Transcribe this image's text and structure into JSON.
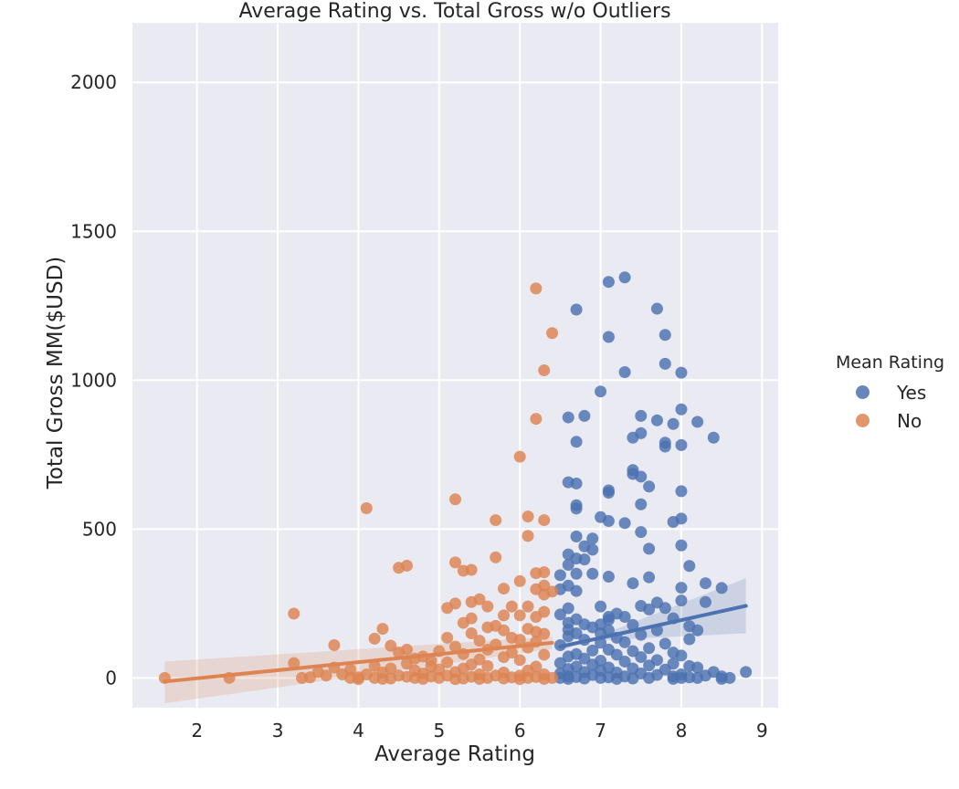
{
  "chart_data": {
    "type": "scatter",
    "title": "Average Rating vs. Total Gross w/o Outliers",
    "xlabel": "Average Rating",
    "ylabel": "Total Gross MM($USD)",
    "xlim": [
      1.2,
      9.2
    ],
    "ylim": [
      -100,
      2200
    ],
    "xticks": [
      2,
      3,
      4,
      5,
      6,
      7,
      8,
      9
    ],
    "yticks": [
      0,
      500,
      1000,
      1500,
      2000
    ],
    "grid": true,
    "background_color": "#eaeaf2",
    "legend": {
      "title": "Mean Rating",
      "placement": "right",
      "entries": [
        {
          "label": "Yes",
          "color": "#4c72b0"
        },
        {
          "label": "No",
          "color": "#dd8452"
        }
      ]
    },
    "series": [
      {
        "name": "Yes",
        "color": "#4c72b0",
        "regression": {
          "x": [
            6.5,
            8.8
          ],
          "y": [
            105,
            242
          ],
          "ci_upper_end": 335,
          "ci_lower_end": 150
        },
        "points": [
          [
            7.3,
            1345
          ],
          [
            7.1,
            1330
          ],
          [
            7.7,
            1240
          ],
          [
            6.7,
            1237
          ],
          [
            7.8,
            1152
          ],
          [
            7.1,
            1145
          ],
          [
            7.8,
            1055
          ],
          [
            7.3,
            1027
          ],
          [
            8.0,
            1025
          ],
          [
            7.0,
            962
          ],
          [
            8.0,
            902
          ],
          [
            7.5,
            880
          ],
          [
            6.6,
            875
          ],
          [
            6.8,
            880
          ],
          [
            8.2,
            860
          ],
          [
            7.7,
            865
          ],
          [
            7.9,
            853
          ],
          [
            7.5,
            822
          ],
          [
            7.4,
            807
          ],
          [
            8.4,
            807
          ],
          [
            6.7,
            793
          ],
          [
            7.8,
            790
          ],
          [
            7.8,
            777
          ],
          [
            8.0,
            782
          ],
          [
            7.4,
            698
          ],
          [
            7.4,
            685
          ],
          [
            7.5,
            676
          ],
          [
            6.6,
            657
          ],
          [
            6.7,
            653
          ],
          [
            7.6,
            643
          ],
          [
            7.1,
            630
          ],
          [
            7.1,
            622
          ],
          [
            8.0,
            627
          ],
          [
            7.5,
            583
          ],
          [
            6.7,
            580
          ],
          [
            6.7,
            569
          ],
          [
            7.0,
            540
          ],
          [
            8.0,
            535
          ],
          [
            7.1,
            527
          ],
          [
            7.9,
            524
          ],
          [
            7.3,
            520
          ],
          [
            7.5,
            490
          ],
          [
            6.7,
            475
          ],
          [
            6.9,
            468
          ],
          [
            6.8,
            442
          ],
          [
            8.0,
            445
          ],
          [
            7.6,
            434
          ],
          [
            6.9,
            431
          ],
          [
            6.6,
            415
          ],
          [
            6.7,
            401
          ],
          [
            6.8,
            398
          ],
          [
            6.6,
            380
          ],
          [
            8.1,
            376
          ],
          [
            6.7,
            350
          ],
          [
            6.9,
            350
          ],
          [
            6.5,
            345
          ],
          [
            7.1,
            340
          ],
          [
            7.6,
            338
          ],
          [
            8.3,
            318
          ],
          [
            7.4,
            318
          ],
          [
            6.6,
            310
          ],
          [
            8.0,
            303
          ],
          [
            8.5,
            302
          ],
          [
            6.5,
            298
          ],
          [
            6.7,
            292
          ],
          [
            8.0,
            260
          ],
          [
            8.3,
            255
          ],
          [
            7.7,
            253
          ],
          [
            7.0,
            240
          ],
          [
            6.6,
            234
          ],
          [
            7.5,
            242
          ],
          [
            7.8,
            235
          ],
          [
            7.6,
            230
          ],
          [
            7.2,
            216
          ],
          [
            6.5,
            213
          ],
          [
            7.1,
            205
          ],
          [
            7.3,
            205
          ],
          [
            6.7,
            197
          ],
          [
            7.9,
            200
          ],
          [
            7.1,
            195
          ],
          [
            6.6,
            185
          ],
          [
            7.0,
            180
          ],
          [
            6.8,
            180
          ],
          [
            7.4,
            178
          ],
          [
            6.9,
            170
          ],
          [
            8.1,
            174
          ],
          [
            8.2,
            160
          ],
          [
            7.1,
            160
          ],
          [
            6.6,
            162
          ],
          [
            7.7,
            160
          ],
          [
            6.7,
            150
          ],
          [
            7.0,
            150
          ],
          [
            7.5,
            145
          ],
          [
            6.6,
            140
          ],
          [
            7.2,
            135
          ],
          [
            8.1,
            130
          ],
          [
            6.8,
            128
          ],
          [
            7.3,
            120
          ],
          [
            7.0,
            118
          ],
          [
            7.8,
            115
          ],
          [
            6.5,
            110
          ],
          [
            7.6,
            100
          ],
          [
            7.1,
            95
          ],
          [
            6.9,
            92
          ],
          [
            7.4,
            90
          ],
          [
            7.9,
            85
          ],
          [
            6.7,
            80
          ],
          [
            7.2,
            78
          ],
          [
            8.0,
            75
          ],
          [
            6.6,
            72
          ],
          [
            7.5,
            70
          ],
          [
            6.8,
            65
          ],
          [
            7.7,
            60
          ],
          [
            7.0,
            58
          ],
          [
            7.3,
            55
          ],
          [
            6.5,
            50
          ],
          [
            7.9,
            48
          ],
          [
            6.9,
            45
          ],
          [
            7.6,
            42
          ],
          [
            8.1,
            40
          ],
          [
            6.7,
            38
          ],
          [
            7.1,
            35
          ],
          [
            8.2,
            35
          ],
          [
            7.4,
            32
          ],
          [
            6.6,
            30
          ],
          [
            7.8,
            28
          ],
          [
            7.0,
            25
          ],
          [
            8.4,
            20
          ],
          [
            6.8,
            20
          ],
          [
            7.2,
            18
          ],
          [
            8.8,
            20
          ],
          [
            6.5,
            15
          ],
          [
            7.5,
            15
          ],
          [
            8.0,
            12
          ],
          [
            6.9,
            10
          ],
          [
            7.7,
            10
          ],
          [
            8.3,
            8
          ],
          [
            6.6,
            5
          ],
          [
            7.3,
            5
          ],
          [
            7.9,
            5
          ],
          [
            8.5,
            5
          ],
          [
            6.7,
            3
          ],
          [
            7.1,
            2
          ],
          [
            8.1,
            2
          ],
          [
            6.5,
            0
          ],
          [
            7.0,
            0
          ],
          [
            7.6,
            0
          ],
          [
            8.2,
            0
          ],
          [
            8.6,
            0
          ],
          [
            8.5,
            -3
          ],
          [
            6.8,
            -2
          ],
          [
            7.4,
            -2
          ],
          [
            6.6,
            -3
          ],
          [
            7.2,
            -3
          ],
          [
            7.9,
            -3
          ],
          [
            8.0,
            0
          ]
        ]
      },
      {
        "name": "No",
        "color": "#dd8452",
        "regression": {
          "x": [
            1.6,
            6.4
          ],
          "y": [
            -12,
            118
          ],
          "ci_upper_start": 55,
          "ci_lower_start": -85
        },
        "points": [
          [
            6.2,
            1308
          ],
          [
            6.4,
            1158
          ],
          [
            6.3,
            1033
          ],
          [
            6.2,
            870
          ],
          [
            6.0,
            743
          ],
          [
            5.2,
            600
          ],
          [
            4.1,
            570
          ],
          [
            6.1,
            542
          ],
          [
            5.7,
            530
          ],
          [
            6.3,
            530
          ],
          [
            6.1,
            477
          ],
          [
            5.7,
            405
          ],
          [
            5.2,
            388
          ],
          [
            4.6,
            377
          ],
          [
            4.5,
            370
          ],
          [
            5.4,
            363
          ],
          [
            5.3,
            360
          ],
          [
            6.3,
            355
          ],
          [
            6.2,
            352
          ],
          [
            6.0,
            325
          ],
          [
            6.3,
            310
          ],
          [
            5.8,
            300
          ],
          [
            6.2,
            298
          ],
          [
            6.4,
            290
          ],
          [
            6.3,
            280
          ],
          [
            5.5,
            264
          ],
          [
            5.4,
            255
          ],
          [
            5.2,
            250
          ],
          [
            5.1,
            235
          ],
          [
            5.9,
            240
          ],
          [
            6.1,
            240
          ],
          [
            5.6,
            240
          ],
          [
            6.3,
            222
          ],
          [
            3.2,
            216
          ],
          [
            5.8,
            210
          ],
          [
            6.0,
            210
          ],
          [
            6.2,
            205
          ],
          [
            5.4,
            200
          ],
          [
            5.3,
            185
          ],
          [
            5.7,
            175
          ],
          [
            5.6,
            170
          ],
          [
            6.1,
            165
          ],
          [
            4.3,
            165
          ],
          [
            5.8,
            160
          ],
          [
            6.2,
            155
          ],
          [
            5.4,
            150
          ],
          [
            6.3,
            148
          ],
          [
            4.2,
            132
          ],
          [
            5.1,
            135
          ],
          [
            5.9,
            135
          ],
          [
            6.0,
            128
          ],
          [
            5.5,
            125
          ],
          [
            6.2,
            122
          ],
          [
            3.7,
            110
          ],
          [
            4.4,
            108
          ],
          [
            5.7,
            112
          ],
          [
            5.2,
            105
          ],
          [
            6.1,
            102
          ],
          [
            4.6,
            95
          ],
          [
            5.6,
            95
          ],
          [
            5.0,
            90
          ],
          [
            4.5,
            85
          ],
          [
            5.9,
            85
          ],
          [
            5.3,
            80
          ],
          [
            6.3,
            78
          ],
          [
            4.8,
            72
          ],
          [
            5.8,
            70
          ],
          [
            4.7,
            65
          ],
          [
            5.5,
            62
          ],
          [
            4.9,
            58
          ],
          [
            6.0,
            60
          ],
          [
            3.2,
            50
          ],
          [
            5.1,
            52
          ],
          [
            4.6,
            48
          ],
          [
            5.4,
            45
          ],
          [
            4.2,
            40
          ],
          [
            3.7,
            35
          ],
          [
            5.6,
            40
          ],
          [
            4.9,
            38
          ],
          [
            6.2,
            38
          ],
          [
            4.4,
            32
          ],
          [
            5.3,
            32
          ],
          [
            3.9,
            28
          ],
          [
            5.0,
            28
          ],
          [
            4.7,
            25
          ],
          [
            6.1,
            25
          ],
          [
            3.5,
            20
          ],
          [
            4.3,
            18
          ],
          [
            5.2,
            20
          ],
          [
            5.8,
            18
          ],
          [
            3.8,
            12
          ],
          [
            4.1,
            12
          ],
          [
            4.8,
            15
          ],
          [
            5.5,
            12
          ],
          [
            6.3,
            12
          ],
          [
            3.6,
            8
          ],
          [
            4.5,
            8
          ],
          [
            5.1,
            8
          ],
          [
            5.7,
            8
          ],
          [
            6.0,
            8
          ],
          [
            3.4,
            2
          ],
          [
            4.0,
            2
          ],
          [
            4.6,
            4
          ],
          [
            4.9,
            5
          ],
          [
            5.4,
            4
          ],
          [
            5.9,
            2
          ],
          [
            6.2,
            3
          ],
          [
            1.6,
            0
          ],
          [
            2.4,
            0
          ],
          [
            3.3,
            0
          ],
          [
            3.9,
            0
          ],
          [
            4.2,
            0
          ],
          [
            4.4,
            -2
          ],
          [
            4.7,
            0
          ],
          [
            5.0,
            0
          ],
          [
            5.3,
            -2
          ],
          [
            5.6,
            0
          ],
          [
            5.8,
            -2
          ],
          [
            6.1,
            0
          ],
          [
            6.4,
            0
          ],
          [
            4.0,
            -4
          ],
          [
            4.3,
            -3
          ],
          [
            4.8,
            -3
          ],
          [
            5.2,
            -4
          ],
          [
            5.5,
            -3
          ],
          [
            6.0,
            -4
          ],
          [
            6.3,
            -3
          ]
        ]
      }
    ]
  }
}
